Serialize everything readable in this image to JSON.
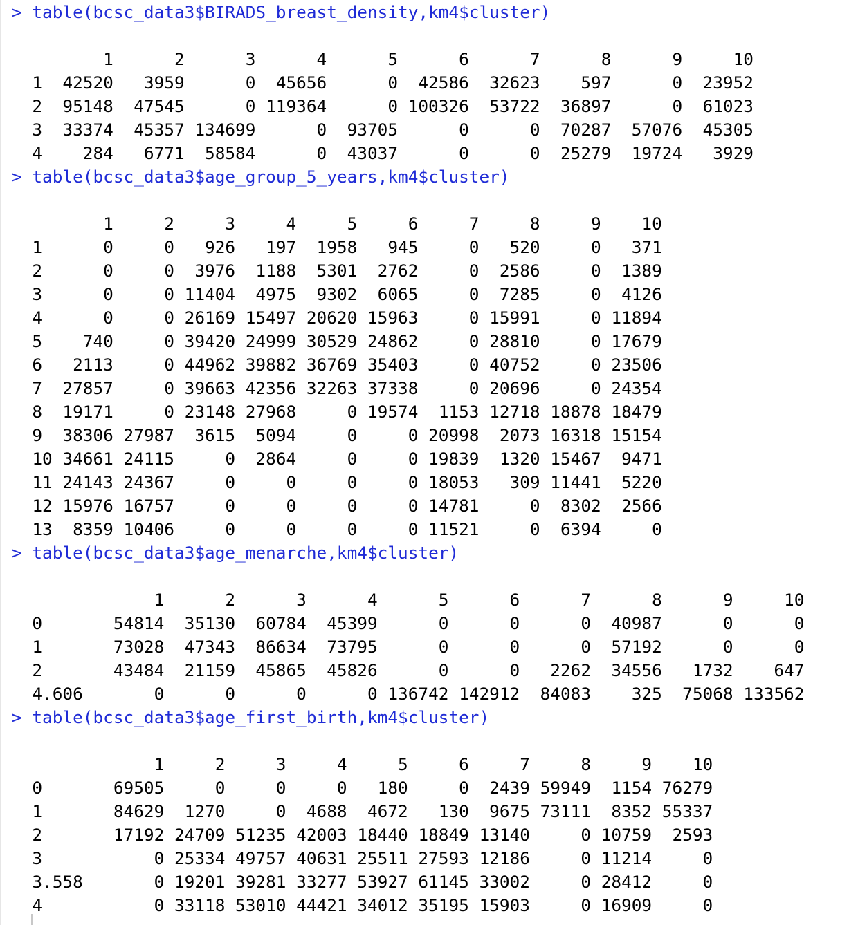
{
  "console": {
    "prompt_symbol": ">",
    "colors": {
      "command": "#1f2bd6",
      "output": "#000000",
      "background": "#ffffff"
    },
    "blocks": [
      {
        "command": "table(bcsc_data3$BIRADS_breast_density,km4$cluster)",
        "output": [
          "",
          "       1      2      3      4      5      6      7      8      9     10",
          "1  42520   3959      0  45656      0  42586  32623    597      0  23952",
          "2  95148  47545      0 119364      0 100326  53722  36897      0  61023",
          "3  33374  45357 134699      0  93705      0      0  70287  57076  45305",
          "4    284   6771  58584      0  43037      0      0  25279  19724   3929"
        ]
      },
      {
        "command": "table(bcsc_data3$age_group_5_years,km4$cluster)",
        "output": [
          "",
          "       1     2     3     4     5     6     7     8     9    10",
          "1      0     0   926   197  1958   945     0   520     0   371",
          "2      0     0  3976  1188  5301  2762     0  2586     0  1389",
          "3      0     0 11404  4975  9302  6065     0  7285     0  4126",
          "4      0     0 26169 15497 20620 15963     0 15991     0 11894",
          "5    740     0 39420 24999 30529 24862     0 28810     0 17679",
          "6   2113     0 44962 39882 36769 35403     0 40752     0 23506",
          "7  27857     0 39663 42356 32263 37338     0 20696     0 24354",
          "8  19171     0 23148 27968     0 19574  1153 12718 18878 18479",
          "9  38306 27987  3615  5094     0     0 20998  2073 16318 15154",
          "10 34661 24115     0  2864     0     0 19839  1320 15467  9471",
          "11 24143 24367     0     0     0     0 18053   309 11441  5220",
          "12 15976 16757     0     0     0     0 14781     0  8302  2566",
          "13  8359 10406     0     0     0     0 11521     0  6394     0"
        ]
      },
      {
        "command": "table(bcsc_data3$age_menarche,km4$cluster)",
        "output": [
          "",
          "            1      2      3      4      5      6      7      8      9     10",
          "0       54814  35130  60784  45399      0      0      0  40987      0      0",
          "1       73028  47343  86634  73795      0      0      0  57192      0      0",
          "2       43484  21159  45865  45826      0      0   2262  34556   1732    647",
          "4.606       0      0      0      0 136742 142912  84083    325  75068 133562"
        ]
      },
      {
        "command": "table(bcsc_data3$age_first_birth,km4$cluster)",
        "output": [
          "",
          "            1     2     3     4     5     6     7     8     9    10",
          "0       69505     0     0     0   180     0  2439 59949  1154 76279",
          "1       84629  1270     0  4688  4672   130  9675 73111  8352 55337",
          "2       17192 24709 51235 42003 18440 18849 13140     0 10759  2593",
          "3           0 25334 49757 40631 25511 27593 12186     0 11214     0",
          "3.558       0 19201 39281 33277 53927 61145 33002     0 28412     0",
          "4           0 33118 53010 44421 34012 35195 15903     0 16909     0"
        ]
      }
    ]
  }
}
